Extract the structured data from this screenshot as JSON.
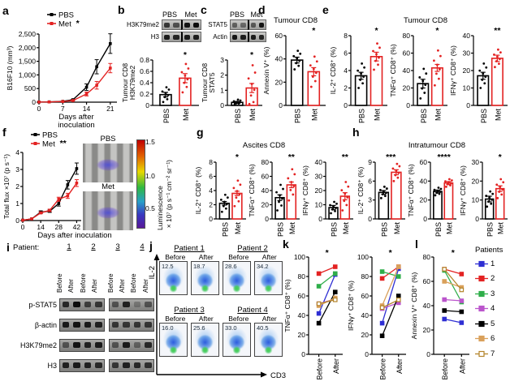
{
  "panels": {
    "a": "a",
    "b": "b",
    "c": "c",
    "d": "d",
    "e": "e",
    "f": "f",
    "g": "g",
    "h": "h",
    "i": "i",
    "j": "j",
    "k": "k",
    "l": "l"
  },
  "colors": {
    "pbs": "#000000",
    "met": "#e32222"
  },
  "patients": [
    {
      "label": "1",
      "color": "#2f2fd3",
      "open": false
    },
    {
      "label": "2",
      "color": "#e32222",
      "open": false
    },
    {
      "label": "3",
      "color": "#2fae4a",
      "open": false
    },
    {
      "label": "4",
      "color": "#bb55cc",
      "open": false
    },
    {
      "label": "5",
      "color": "#000000",
      "open": false
    },
    {
      "label": "6",
      "color": "#d9a05b",
      "open": false
    },
    {
      "label": "7",
      "color": "#b3842a",
      "open": true
    }
  ],
  "titles": {
    "d": "Tumour CD8",
    "e": "Tumour CD8",
    "g": "Ascites CD8",
    "h": "Intratumour CD8"
  },
  "chart_data": {
    "a": {
      "type": "line",
      "ylabel": [
        "B16F10 (mm³)"
      ],
      "ymax": 2500,
      "yticks": [
        "0",
        "500",
        "1,000",
        "1,500",
        "2,000",
        "2,500"
      ],
      "x": [
        0,
        3,
        7,
        10,
        14,
        17,
        21
      ],
      "xmax": 22,
      "xticks": [
        "0",
        "7",
        "14",
        "21"
      ],
      "xtickvals": [
        0,
        7,
        14,
        21
      ],
      "xlabel": [
        "Days after",
        "inoculation"
      ],
      "ml": 40,
      "mt": 30,
      "series": [
        {
          "name": "PBS",
          "color": "#000000",
          "values": [
            5,
            10,
            30,
            90,
            550,
            1300,
            2150
          ],
          "errs": [
            0,
            0,
            0,
            20,
            120,
            260,
            360
          ]
        },
        {
          "name": "Met",
          "color": "#e32222",
          "sig": "*",
          "values": [
            5,
            8,
            25,
            60,
            300,
            620,
            1250
          ],
          "errs": [
            0,
            0,
            0,
            15,
            70,
            140,
            170
          ]
        }
      ]
    },
    "b_bar": {
      "type": "bar",
      "ylabel": [
        "Tumour CD8",
        "H3K79me2"
      ],
      "ymax": 0.8,
      "yticks": [
        "0",
        "0.2",
        "0.4",
        "0.6",
        "0.8"
      ],
      "cats": [
        "PBS",
        "Met"
      ],
      "values": [
        0.19,
        0.48
      ],
      "errs": [
        0.04,
        0.08
      ],
      "spread": [
        0.13,
        0.25
      ],
      "sig": "*",
      "ml": 38
    },
    "c_bar": {
      "type": "bar",
      "ylabel": [
        "Tumour CD8",
        "STAT5"
      ],
      "ymax": 3,
      "yticks": [
        "0",
        "1",
        "2",
        "3"
      ],
      "cats": [
        "PBS",
        "Met"
      ],
      "values": [
        0.2,
        1.15
      ],
      "errs": [
        0.06,
        0.3
      ],
      "spread": [
        0.18,
        1.5
      ],
      "sig": "*",
      "ml": 32
    },
    "d": {
      "type": "bar",
      "ylabel": [
        "Annexin V⁺ (%)"
      ],
      "ymax": 60,
      "yticks": [
        "0",
        "20",
        "40",
        "60"
      ],
      "cats": [
        "PBS",
        "Met"
      ],
      "values": [
        39,
        29
      ],
      "errs": [
        2.5,
        3.5
      ],
      "spread": [
        8,
        13
      ],
      "sig": "*",
      "ml": 28
    },
    "e1": {
      "type": "bar",
      "ylabel": [
        "IL-2⁺ CD8⁺ (%)"
      ],
      "ymax": 8,
      "yticks": [
        "0",
        "2",
        "4",
        "6",
        "8"
      ],
      "cats": [
        "PBS",
        "Met"
      ],
      "values": [
        3.4,
        5.6
      ],
      "errs": [
        0.4,
        0.5
      ],
      "spread": [
        1.4,
        1.5
      ],
      "sig": "*",
      "ml": 26
    },
    "e2": {
      "type": "bar",
      "ylabel": [
        "TNFα⁺ CD8⁺ (%)"
      ],
      "ymax": 80,
      "yticks": [
        "0",
        "20",
        "40",
        "60",
        "80"
      ],
      "cats": [
        "PBS",
        "Met"
      ],
      "values": [
        25,
        43
      ],
      "errs": [
        5,
        4
      ],
      "spread": [
        17,
        20
      ],
      "sig": "*",
      "ml": 29
    },
    "e3": {
      "type": "bar",
      "ylabel": [
        "IFNγ⁺ CD8⁺ (%)"
      ],
      "ymax": 40,
      "yticks": [
        "0",
        "10",
        "20",
        "30",
        "40"
      ],
      "cats": [
        "PBS",
        "Met"
      ],
      "values": [
        17,
        27
      ],
      "errs": [
        2,
        1.8
      ],
      "spread": [
        7,
        5
      ],
      "sig": "**",
      "ml": 29
    },
    "f": {
      "type": "line",
      "ylabel": [
        "Total flux ×10⁷ (p s⁻¹)"
      ],
      "ymax": 4,
      "yticks": [
        "0",
        "1",
        "2",
        "3",
        "4"
      ],
      "x": [
        0,
        7,
        14,
        21,
        28,
        35,
        42
      ],
      "xmax": 43,
      "xticks": [
        "0",
        "14",
        "28",
        "42"
      ],
      "xtickvals": [
        0,
        14,
        28,
        42
      ],
      "xlabel": [
        "Days after inoculation"
      ],
      "ml": 24,
      "mt": 28,
      "xlx": 88,
      "series": [
        {
          "name": "PBS",
          "color": "#000000",
          "values": [
            0.02,
            0.1,
            0.5,
            0.55,
            1.0,
            2.1,
            3.05
          ],
          "errs": [
            0,
            0,
            0.07,
            0.07,
            0.15,
            0.25,
            0.33
          ]
        },
        {
          "name": "Met",
          "color": "#e32222",
          "sig": "**",
          "values": [
            0.02,
            0.1,
            0.45,
            0.6,
            1.25,
            1.45,
            2.2
          ],
          "errs": [
            0,
            0,
            0.05,
            0.07,
            0.12,
            0.15,
            0.2
          ]
        }
      ]
    },
    "g1": {
      "type": "bar",
      "ylabel": [
        "IL-2⁺ CD8⁺ (%)"
      ],
      "ymax": 8,
      "yticks": [
        "0",
        "2",
        "4",
        "6",
        "8"
      ],
      "cats": [
        "PBS",
        "Met"
      ],
      "values": [
        2.2,
        3.6
      ],
      "errs": [
        0.25,
        0.3
      ],
      "spread": [
        1.2,
        1.8
      ],
      "sig": "*",
      "ml": 26
    },
    "g2": {
      "type": "bar",
      "ylabel": [
        "TNFα⁺ CD8⁺ (%)"
      ],
      "ymax": 80,
      "yticks": [
        "0",
        "20",
        "40",
        "60",
        "80"
      ],
      "cats": [
        "PBS",
        "Met"
      ],
      "values": [
        30,
        48
      ],
      "errs": [
        4,
        4
      ],
      "spread": [
        18,
        22
      ],
      "sig": "**",
      "ml": 29
    },
    "g3": {
      "type": "bar",
      "ylabel": [
        "IFNγ⁺ CD8⁺ (%)"
      ],
      "ymax": 40,
      "yticks": [
        "0",
        "10",
        "20",
        "30",
        "40"
      ],
      "cats": [
        "PBS",
        "Met"
      ],
      "values": [
        8,
        16
      ],
      "errs": [
        1.5,
        2.5
      ],
      "spread": [
        4,
        10
      ],
      "sig": "**",
      "ml": 29
    },
    "h1": {
      "type": "bar",
      "ylabel": [
        "IL-2⁺ CD8⁺ (%)"
      ],
      "ymax": 9,
      "yticks": [
        "0",
        "3",
        "6",
        "9"
      ],
      "cats": [
        "PBS",
        "Met"
      ],
      "values": [
        4.2,
        7.4
      ],
      "errs": [
        0.3,
        0.4
      ],
      "spread": [
        0.9,
        1.4
      ],
      "sig": "***",
      "ml": 22
    },
    "h2": {
      "type": "bar",
      "ylabel": [
        "TNFα⁺ CD8⁺ (%)"
      ],
      "ymax": 60,
      "yticks": [
        "0",
        "20",
        "40",
        "60"
      ],
      "cats": [
        "PBS",
        "Met"
      ],
      "values": [
        29,
        38
      ],
      "errs": [
        1.5,
        1.5
      ],
      "spread": [
        4,
        4
      ],
      "sig": "****",
      "ml": 28
    },
    "h3": {
      "type": "bar",
      "ylabel": [
        "IFNγ⁺ CD8⁺ (%)"
      ],
      "ymax": 30,
      "yticks": [
        "0",
        "10",
        "20",
        "30"
      ],
      "cats": [
        "PBS",
        "Met"
      ],
      "values": [
        10.5,
        16
      ],
      "errs": [
        1.5,
        1.5
      ],
      "spread": [
        4,
        5
      ],
      "sig": "*",
      "ml": 28
    },
    "k1": {
      "type": "paired",
      "ylabel": [
        "TNFα⁺ CD8⁺ (%)"
      ],
      "ymax": 100,
      "yticks": [
        "0",
        "20",
        "40",
        "60",
        "80",
        "100"
      ],
      "cats": [
        "Before",
        "After"
      ],
      "pairs": [
        [
          42,
          82
        ],
        [
          83,
          90
        ],
        [
          70,
          83
        ],
        [
          52,
          57
        ],
        [
          32,
          64
        ],
        [
          50,
          58
        ],
        [
          52,
          56
        ]
      ],
      "sig": "*",
      "ml": 30
    },
    "k2": {
      "type": "paired",
      "ylabel": [
        "IFNγ⁺ CD8⁺ (%)"
      ],
      "ymax": 100,
      "yticks": [
        "0",
        "20",
        "40",
        "60",
        "80",
        "100"
      ],
      "cats": [
        "Before",
        "After"
      ],
      "pairs": [
        [
          32,
          88
        ],
        [
          78,
          90
        ],
        [
          85,
          80
        ],
        [
          47,
          53
        ],
        [
          19,
          60
        ],
        [
          50,
          90
        ],
        [
          48,
          56
        ]
      ],
      "sig": "*",
      "ml": 30
    },
    "l": {
      "type": "paired",
      "ylabel": [
        "Annexin V⁺ CD8⁺ (%)"
      ],
      "ymax": 80,
      "yticks": [
        "0",
        "20",
        "40",
        "60",
        "80"
      ],
      "cats": [
        "Before",
        "After"
      ],
      "pairs": [
        [
          29,
          26
        ],
        [
          70,
          66
        ],
        [
          69,
          43
        ],
        [
          45,
          44
        ],
        [
          36,
          35
        ],
        [
          60,
          55
        ],
        [
          70,
          53
        ]
      ],
      "sig": "*",
      "ml": 28
    }
  },
  "blots": {
    "b": {
      "header": [
        "PBS",
        "Met"
      ],
      "divider": "line",
      "rows": [
        {
          "label": "H3K79me2",
          "groups": [
            [
              0.75,
              0.6
            ],
            [
              0.95,
              1
            ]
          ]
        },
        {
          "label": "H3",
          "groups": [
            [
              0.9,
              0.85
            ],
            [
              0.9,
              0.9
            ]
          ]
        }
      ]
    },
    "c": {
      "header": [
        "PBS",
        "Met"
      ],
      "divider": "line",
      "rows": [
        {
          "label": "STAT5",
          "groups": [
            [
              0.5,
              0.45
            ],
            [
              0.55,
              0.95
            ]
          ]
        },
        {
          "label": "Actin",
          "groups": [
            [
              0.95,
              0.9
            ],
            [
              0.9,
              0.85
            ]
          ]
        }
      ]
    },
    "i": {
      "patient_label": "Patient:",
      "patients": [
        "1",
        "2",
        "3",
        "4"
      ],
      "lanes": [
        "Before",
        "After"
      ],
      "divider": "gap",
      "rows": [
        {
          "label": "p-STAT5",
          "groups": [
            [
              0.8,
              1,
              0.65,
              0.7
            ],
            [
              0.5,
              0.85,
              0.25,
              0.5
            ]
          ]
        },
        {
          "label": "β-actin",
          "groups": [
            [
              0.9,
              0.95,
              0.9,
              0.85
            ],
            [
              0.7,
              0.7,
              0.7,
              0.7
            ]
          ]
        },
        {
          "label": "H3K79me2",
          "groups": [
            [
              0.5,
              0.95,
              0.85,
              0.9
            ],
            [
              0.5,
              0.9,
              0.4,
              0.8
            ]
          ]
        },
        {
          "label": "H3",
          "groups": [
            [
              0.85,
              0.9,
              0.85,
              0.8
            ],
            [
              0.7,
              0.85,
              0.8,
              0.75
            ]
          ]
        }
      ]
    }
  },
  "flow": {
    "ylabel": "IL-2",
    "xlabel": "CD3",
    "cols": [
      "Before",
      "After"
    ],
    "patients": [
      {
        "name": "Patient 1",
        "values": [
          "12.5",
          "18.7"
        ]
      },
      {
        "name": "Patient 2",
        "values": [
          "28.6",
          "34.2"
        ]
      },
      {
        "name": "Patient 3",
        "values": [
          "16.0",
          "25.6"
        ]
      },
      {
        "name": "Patient 4",
        "values": [
          "33.0",
          "40.5"
        ]
      }
    ]
  },
  "mice": {
    "groups": [
      "PBS",
      "Met"
    ],
    "colorbar": {
      "ticks": [
        "1.5",
        "1.0",
        "0.5"
      ],
      "label": "Luminescence",
      "units": "×10⁷ (p s⁻¹ cm⁻² sr⁻¹)"
    }
  },
  "legend": {
    "title": "Patients"
  }
}
